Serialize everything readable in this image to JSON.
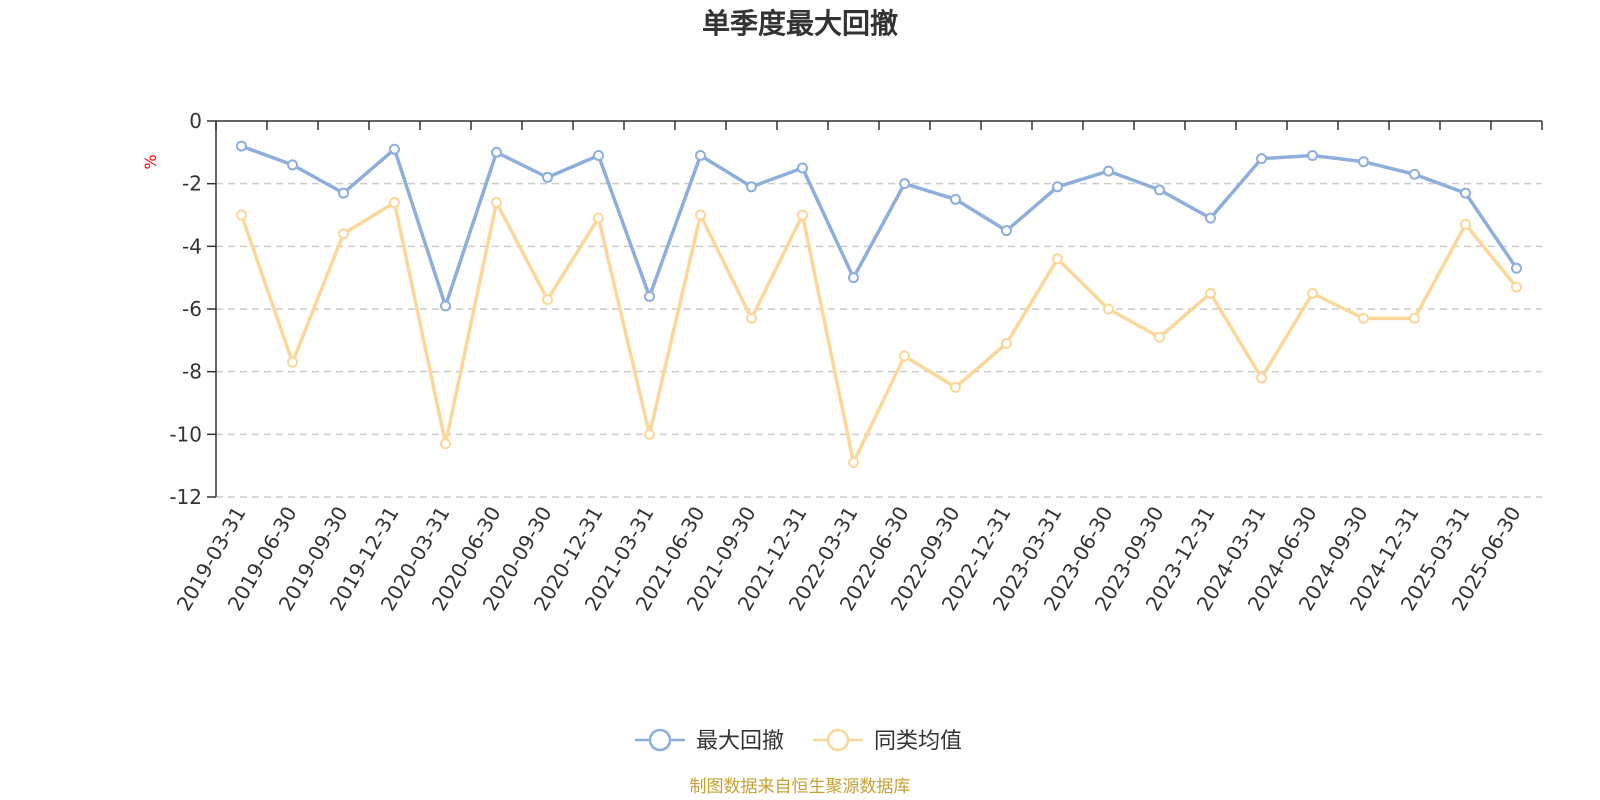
{
  "chart_data": {
    "type": "line",
    "title": "单季度最大回撤",
    "ylabel": "%",
    "ylim": [
      -12,
      0
    ],
    "yticks": [
      0,
      -2,
      -4,
      -6,
      -8,
      -10,
      -12
    ],
    "grid": true,
    "legend_position": "bottom-center",
    "categories": [
      "2019-03-31",
      "2019-06-30",
      "2019-09-30",
      "2019-12-31",
      "2020-03-31",
      "2020-06-30",
      "2020-09-30",
      "2020-12-31",
      "2021-03-31",
      "2021-06-30",
      "2021-09-30",
      "2021-12-31",
      "2022-03-31",
      "2022-06-30",
      "2022-09-30",
      "2022-12-31",
      "2023-03-31",
      "2023-06-30",
      "2023-09-30",
      "2023-12-31",
      "2024-03-31",
      "2024-06-30",
      "2024-09-30",
      "2024-12-31",
      "2025-03-31",
      "2025-06-30"
    ],
    "series": [
      {
        "name": "最大回撤",
        "color": "#8eaedc",
        "values": [
          -0.8,
          -1.4,
          -2.3,
          -0.9,
          -5.9,
          -1.0,
          -1.8,
          -1.1,
          -5.6,
          -1.1,
          -2.1,
          -1.5,
          -5.0,
          -2.0,
          -2.5,
          -3.5,
          -2.1,
          -1.6,
          -2.2,
          -3.1,
          -1.2,
          -1.1,
          -1.3,
          -1.7,
          -2.3,
          -4.7
        ]
      },
      {
        "name": "同类均值",
        "color": "#fbd89a",
        "values": [
          -3.0,
          -7.7,
          -3.6,
          -2.6,
          -10.3,
          -2.6,
          -5.7,
          -3.1,
          -10.0,
          -3.0,
          -6.3,
          -3.0,
          -10.9,
          -7.5,
          -8.5,
          -7.1,
          -4.4,
          -6.0,
          -6.9,
          -5.5,
          -8.2,
          -5.5,
          -6.3,
          -6.3,
          -3.3,
          -5.3
        ]
      }
    ],
    "source": "制图数据来自恒生聚源数据库"
  },
  "colors": {
    "axis": "#333333",
    "grid": "#cccccc",
    "unit_label": "#ff0000",
    "source": "#c8a032"
  }
}
